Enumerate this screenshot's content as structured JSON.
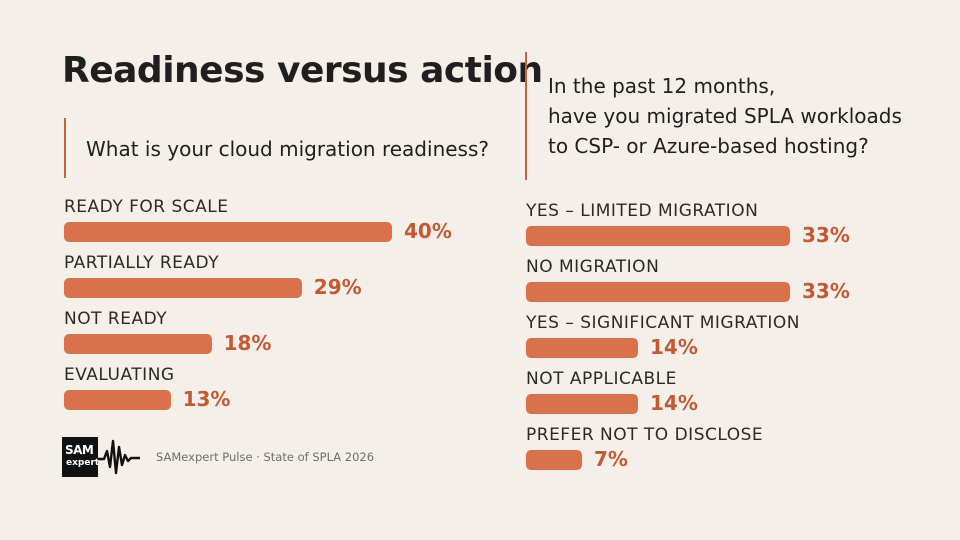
{
  "title": "Readiness versus action",
  "source": "SAMexpert Pulse · State of SPLA 2026",
  "logo": {
    "line1": "SAM",
    "line2": "expert"
  },
  "colors": {
    "bar": "#d9714c",
    "accent": "#c25a34",
    "background": "#f4efe8"
  },
  "chart_data": [
    {
      "type": "bar",
      "orientation": "horizontal",
      "title": "What is your cloud migration readiness?",
      "categories": [
        "READY FOR SCALE",
        "PARTIALLY READY",
        "NOT READY",
        "EVALUATING"
      ],
      "values": [
        40,
        29,
        18,
        13
      ],
      "value_labels": [
        "40%",
        "29%",
        "18%",
        "13%"
      ],
      "unit": "%"
    },
    {
      "type": "bar",
      "orientation": "horizontal",
      "title_lines": [
        "In the past 12 months,",
        "have you migrated SPLA workloads",
        "to CSP- or Azure-based hosting?"
      ],
      "categories": [
        "YES – LIMITED MIGRATION",
        "NO MIGRATION",
        "YES – SIGNIFICANT MIGRATION",
        "NOT APPLICABLE",
        "PREFER NOT TO DISCLOSE"
      ],
      "values": [
        33,
        33,
        14,
        14,
        7
      ],
      "value_labels": [
        "33%",
        "33%",
        "14%",
        "14%",
        "7%"
      ],
      "unit": "%"
    }
  ]
}
